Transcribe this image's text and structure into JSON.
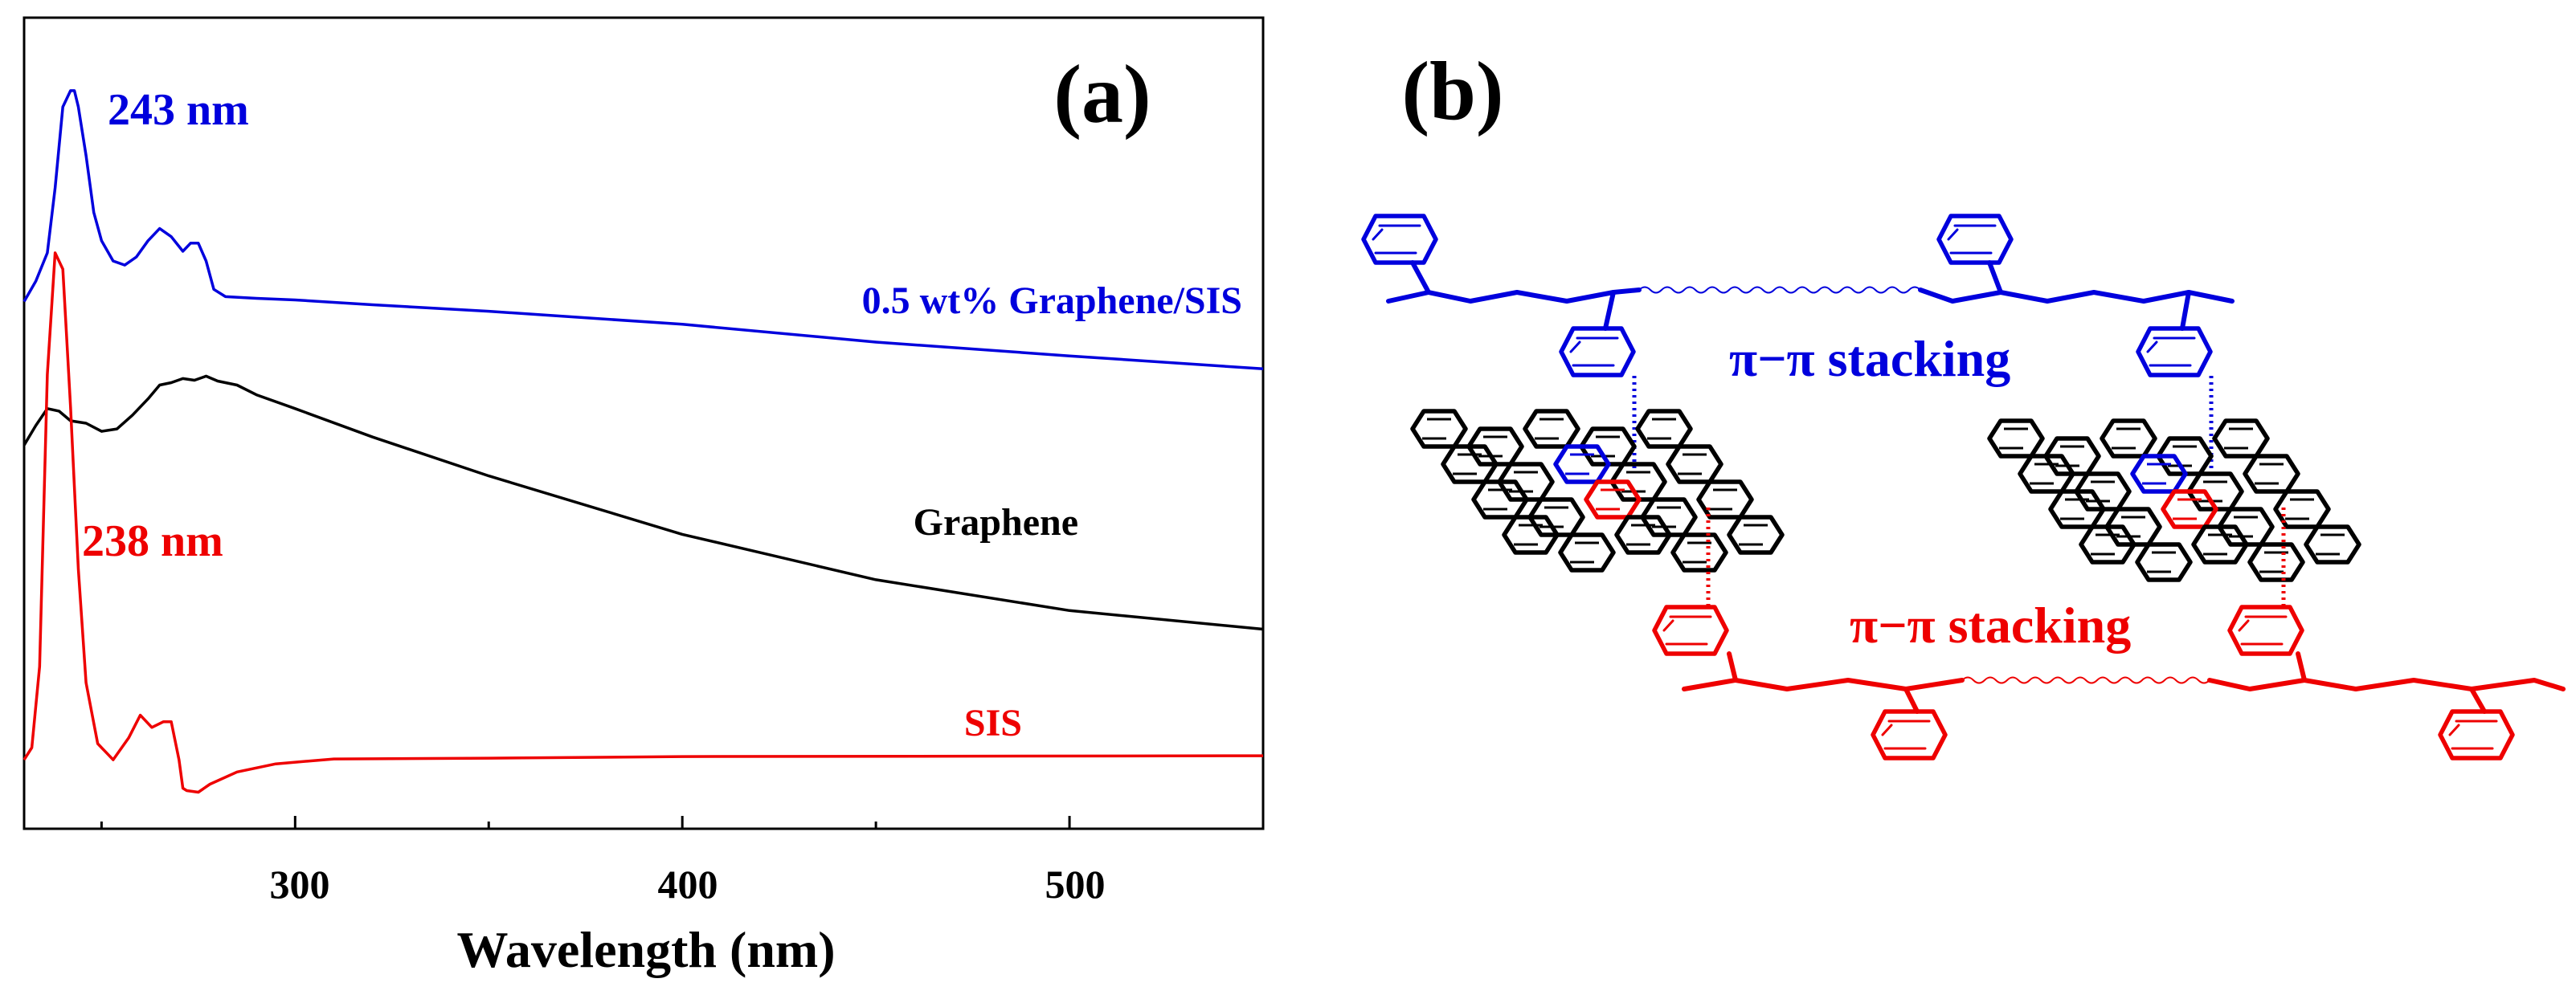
{
  "panel_a": {
    "label": "(a)"
  },
  "panel_b": {
    "label": "(b)",
    "stacking_top": "π−π stacking",
    "stacking_bottom": "π−π stacking"
  },
  "colors": {
    "blue": "#0000dd",
    "red": "#ee0000",
    "black": "#000000"
  },
  "chart_data": {
    "type": "line",
    "title": "",
    "xlabel": "Wavelength (nm)",
    "ylabel": "",
    "xlim": [
      230,
      550
    ],
    "ylim": [
      0,
      1
    ],
    "xticks": [
      300,
      400,
      500
    ],
    "xtick_labels": [
      "300",
      "400",
      "500"
    ],
    "minor_xticks": [
      250,
      350,
      450
    ],
    "grid": false,
    "annotations": [
      {
        "text": "243 nm",
        "x": 243,
        "color": "#0000dd"
      },
      {
        "text": "238 nm",
        "x": 238,
        "color": "#ee0000"
      }
    ],
    "series": [
      {
        "name": "0.5 wt% Graphene/SIS",
        "color": "#0000dd",
        "x": [
          230,
          233,
          236,
          238,
          240,
          242,
          243,
          244,
          246,
          248,
          250,
          253,
          256,
          259,
          262,
          265,
          268,
          271,
          273,
          275,
          277,
          279,
          282,
          290,
          300,
          320,
          350,
          400,
          450,
          500,
          550
        ],
        "y": [
          0.65,
          0.675,
          0.71,
          0.79,
          0.89,
          0.91,
          0.91,
          0.89,
          0.83,
          0.76,
          0.725,
          0.7,
          0.695,
          0.705,
          0.725,
          0.74,
          0.73,
          0.712,
          0.722,
          0.722,
          0.7,
          0.665,
          0.656,
          0.654,
          0.652,
          0.646,
          0.638,
          0.622,
          0.6,
          0.583,
          0.567
        ]
      },
      {
        "name": "Graphene",
        "color": "#000000",
        "x": [
          230,
          233,
          236,
          239,
          242,
          246,
          250,
          254,
          258,
          262,
          265,
          268,
          271,
          274,
          277,
          280,
          285,
          290,
          300,
          320,
          350,
          400,
          450,
          500,
          550
        ],
        "y": [
          0.473,
          0.497,
          0.518,
          0.515,
          0.503,
          0.5,
          0.49,
          0.493,
          0.51,
          0.53,
          0.547,
          0.55,
          0.555,
          0.553,
          0.558,
          0.552,
          0.547,
          0.535,
          0.518,
          0.483,
          0.435,
          0.363,
          0.307,
          0.269,
          0.246
        ]
      },
      {
        "name": "SIS",
        "color": "#ee0000",
        "x": [
          230,
          232,
          234,
          236,
          238,
          240,
          242,
          244,
          246,
          249,
          253,
          257,
          260,
          263,
          266,
          268,
          270,
          271,
          272,
          275,
          278,
          285,
          295,
          310,
          350,
          400,
          550
        ],
        "y": [
          0.085,
          0.1,
          0.2,
          0.56,
          0.71,
          0.69,
          0.52,
          0.32,
          0.18,
          0.105,
          0.085,
          0.112,
          0.14,
          0.125,
          0.132,
          0.132,
          0.085,
          0.05,
          0.047,
          0.045,
          0.055,
          0.07,
          0.08,
          0.086,
          0.087,
          0.089,
          0.09
        ]
      }
    ]
  }
}
